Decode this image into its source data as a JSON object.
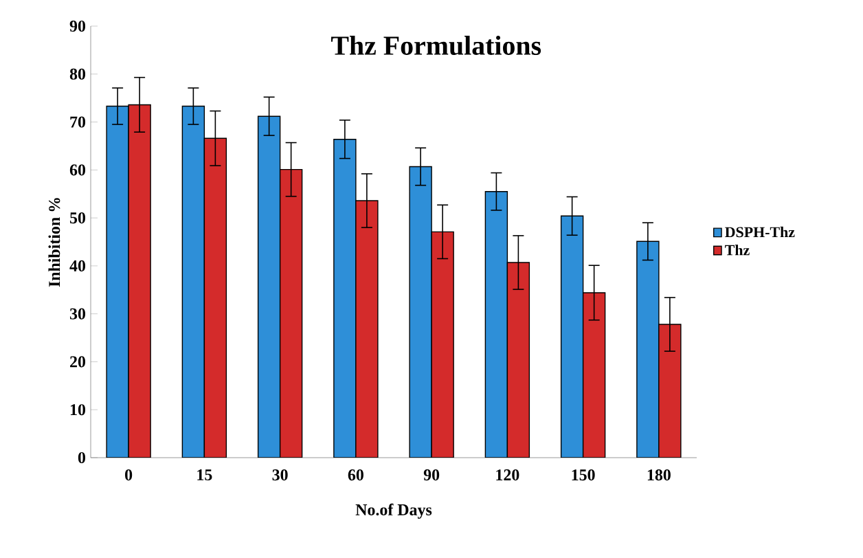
{
  "chart_data": {
    "type": "bar",
    "title": "Thz Formulations",
    "xlabel": "No.of Days",
    "ylabel": "Inhibition %",
    "categories": [
      "0",
      "15",
      "30",
      "60",
      "90",
      "120",
      "150",
      "180"
    ],
    "series": [
      {
        "name": "DSPH-Thz",
        "color": "#2e8fd8",
        "values": [
          73.3,
          73.3,
          71.2,
          66.4,
          60.7,
          55.5,
          50.4,
          45.1
        ],
        "errors": [
          3.8,
          3.8,
          4,
          4,
          3.9,
          3.9,
          4,
          3.9
        ]
      },
      {
        "name": "Thz",
        "color": "#d42b2b",
        "values": [
          73.6,
          66.6,
          60.1,
          53.6,
          47.1,
          40.7,
          34.4,
          27.8
        ],
        "errors": [
          5.7,
          5.7,
          5.6,
          5.6,
          5.6,
          5.6,
          5.7,
          5.6
        ]
      }
    ],
    "ylim": [
      0,
      90
    ],
    "yticks": [
      0,
      10,
      20,
      30,
      40,
      50,
      60,
      70,
      80,
      90
    ],
    "grid": false,
    "legend": "right"
  }
}
